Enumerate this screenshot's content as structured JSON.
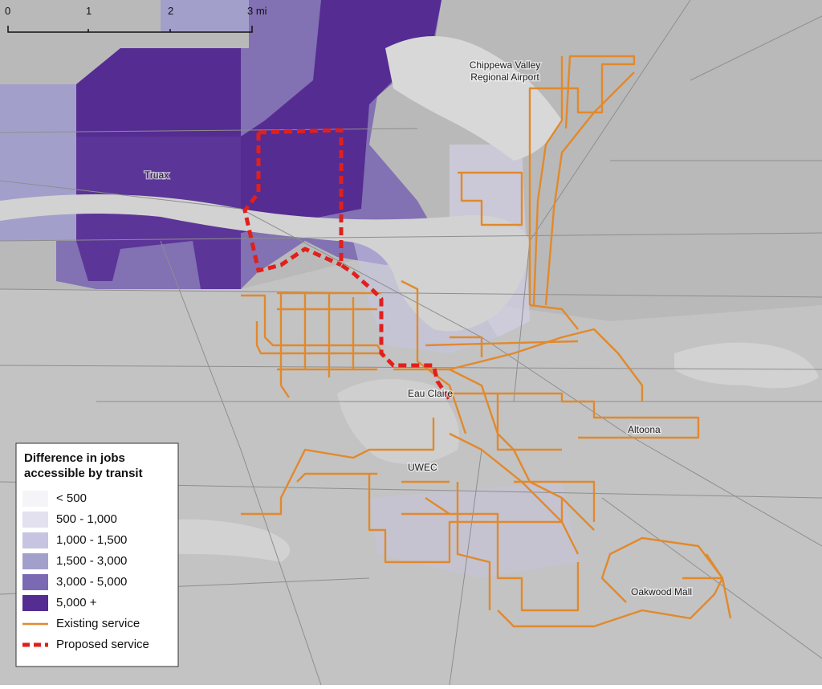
{
  "scale_bar": {
    "labels": [
      "0",
      "1",
      "2",
      "3 mi"
    ]
  },
  "places": {
    "airport": [
      "Chippewa Valley",
      "Regional Airport"
    ],
    "truax": "Truax",
    "eau_claire": "Eau Claire",
    "uwec": "UWEC",
    "altoona": "Altoona",
    "oakwood_mall": "Oakwood Mall"
  },
  "legend": {
    "title": [
      "Difference in jobs",
      "accessible by transit"
    ],
    "items": [
      {
        "label": "< 500",
        "color": "#f5f4f9"
      },
      {
        "label": "500 - 1,000",
        "color": "#e3e1ef"
      },
      {
        "label": "1,000 - 1,500",
        "color": "#c7c4e1"
      },
      {
        "label": "1,500 - 3,000",
        "color": "#a39fcb"
      },
      {
        "label": "3,000 - 5,000",
        "color": "#7c69b3"
      },
      {
        "label": "5,000 +",
        "color": "#552c92"
      }
    ],
    "lines": [
      {
        "label": "Existing service",
        "color": "#e2892c",
        "dashed": false
      },
      {
        "label": "Proposed service",
        "color": "#e0201c",
        "dashed": true
      }
    ]
  }
}
